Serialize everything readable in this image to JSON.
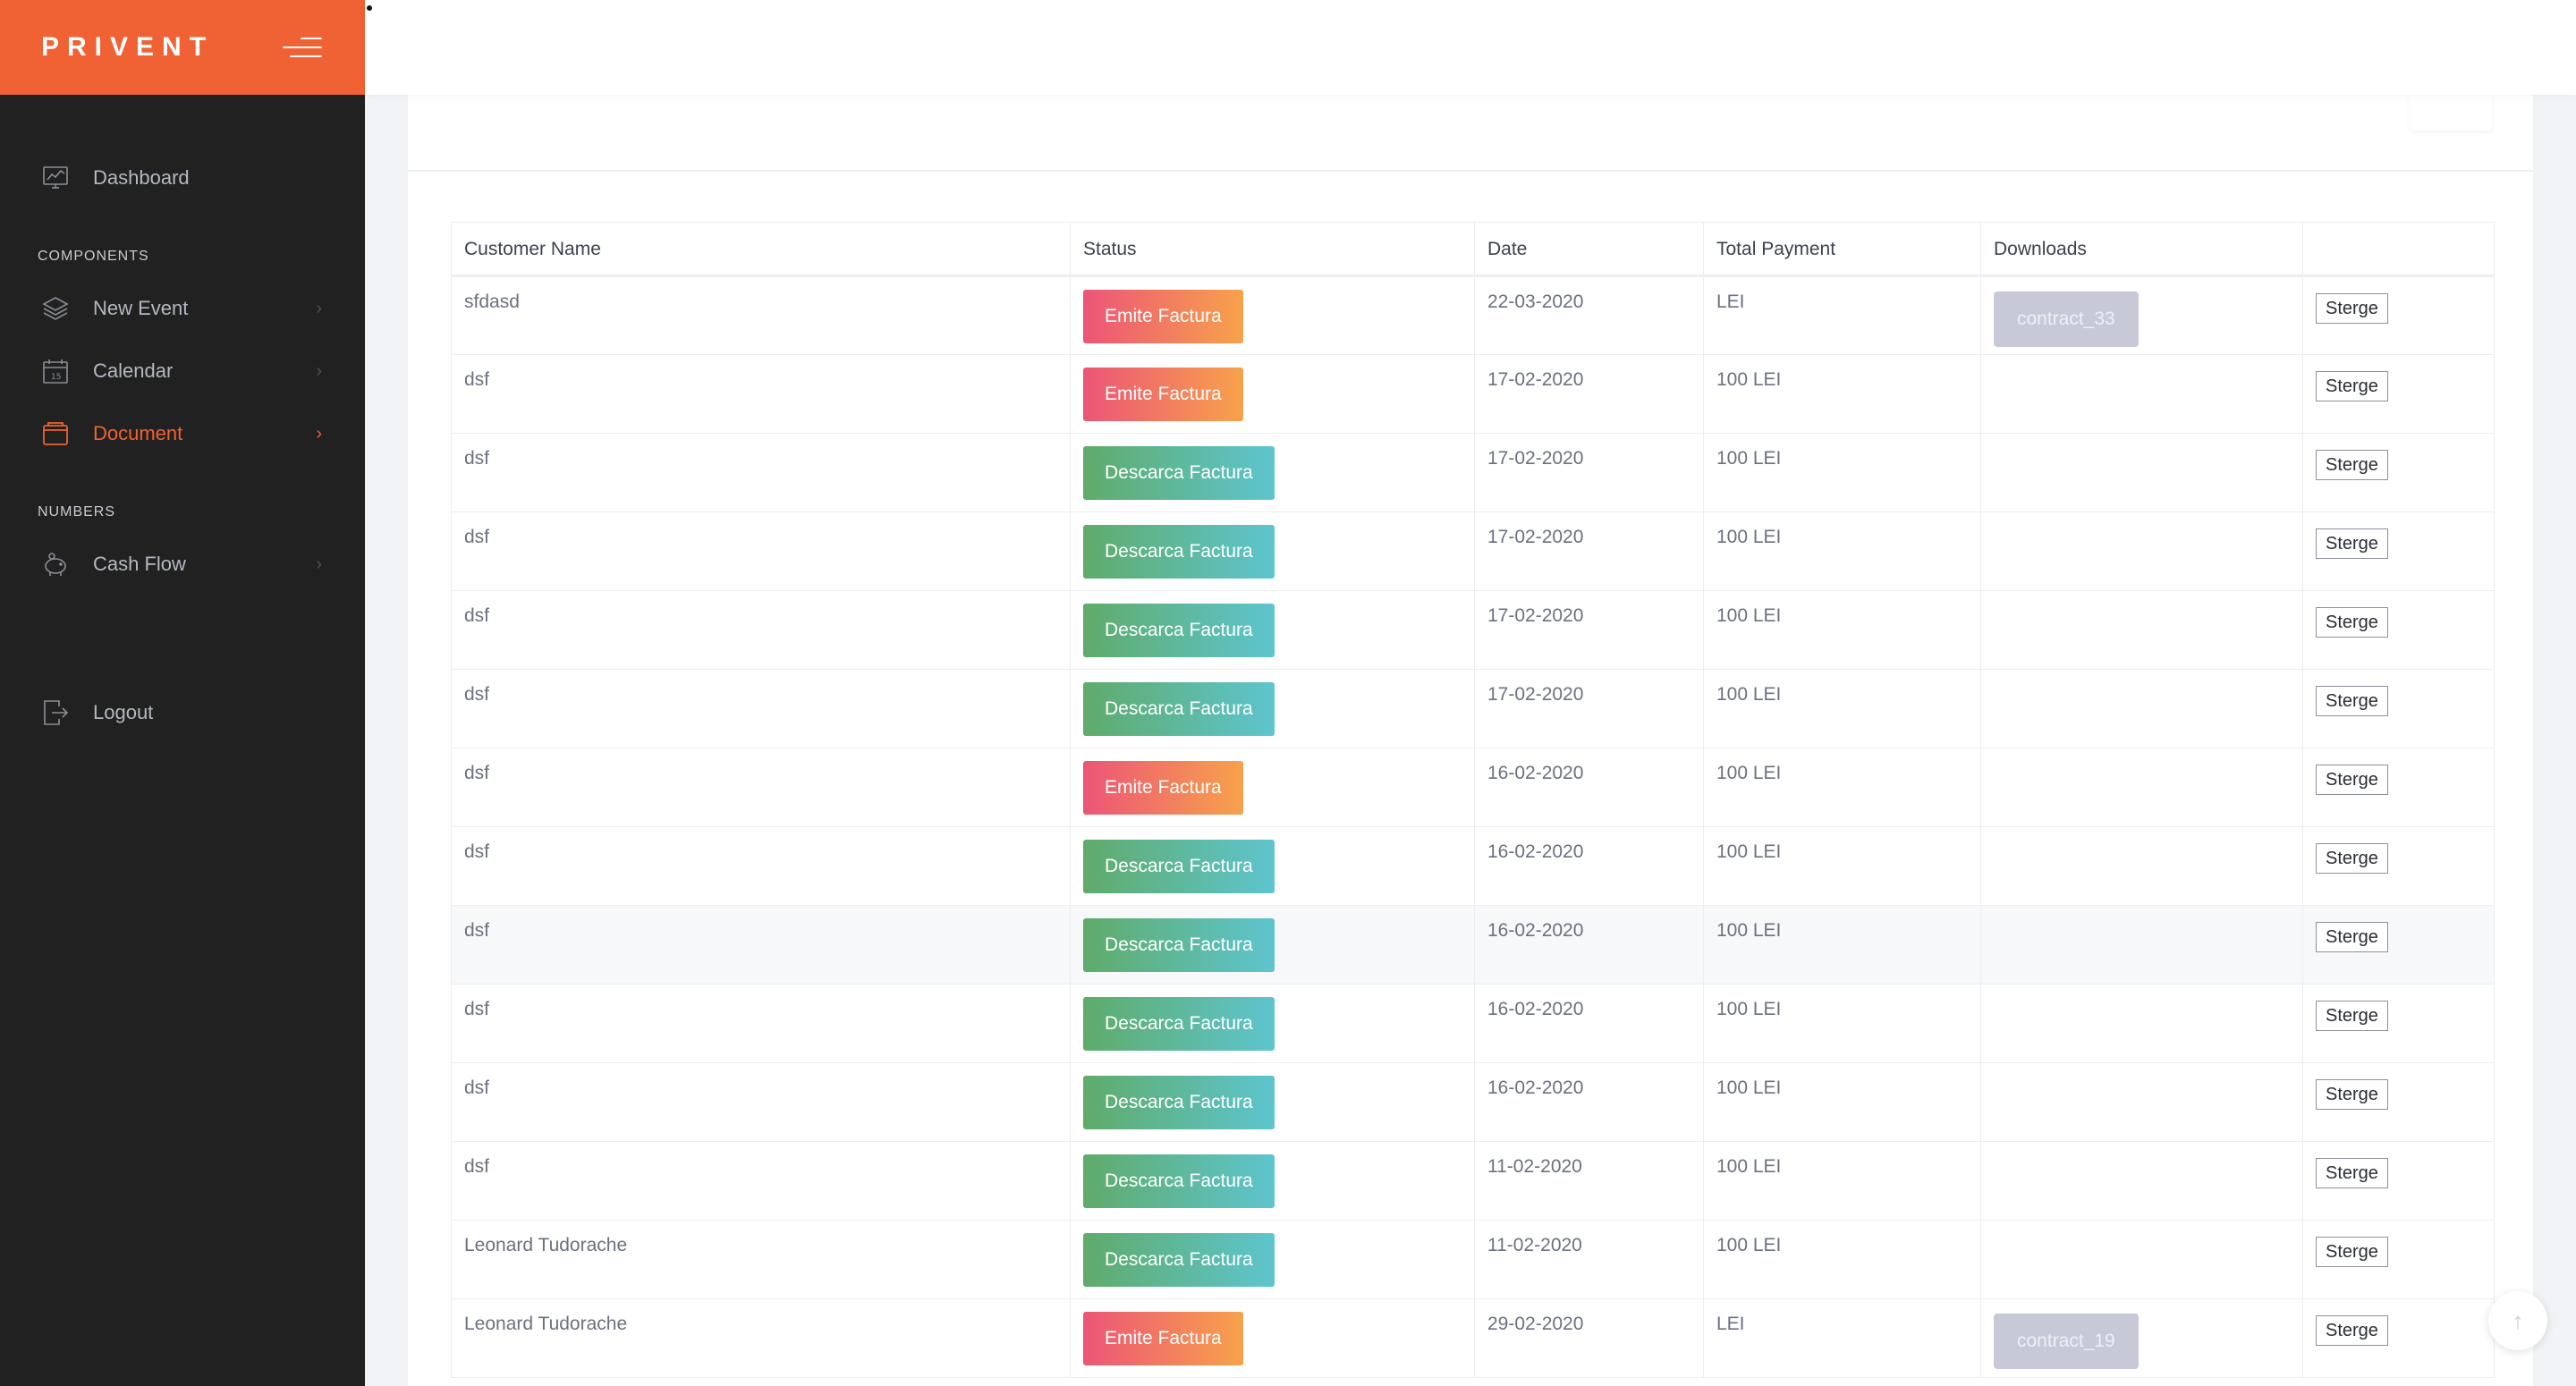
{
  "brand": {
    "name": "PRIVENT"
  },
  "sidebar": {
    "items_top": [
      {
        "label": "Dashboard",
        "icon": "chart-icon"
      }
    ],
    "section_components": "COMPONENTS",
    "items_components": [
      {
        "label": "New Event",
        "icon": "layers-icon",
        "chevron": "›"
      },
      {
        "label": "Calendar",
        "icon": "calendar-icon",
        "chevron": "›"
      },
      {
        "label": "Document",
        "icon": "folder-icon",
        "chevron": "›",
        "active": true
      }
    ],
    "section_numbers": "NUMBERS",
    "items_numbers": [
      {
        "label": "Cash Flow",
        "icon": "piggy-bank-icon",
        "chevron": "›"
      }
    ],
    "logout": {
      "label": "Logout",
      "icon": "logout-icon"
    }
  },
  "colors": {
    "accent": "#f06233",
    "sidebar_bg": "#212121",
    "emite_gradient": [
      "#ec5577",
      "#f7a24b"
    ],
    "descarca_gradient": [
      "#5fab6a",
      "#5ec5cf"
    ],
    "download_bg": "#c7c9d6"
  },
  "table": {
    "columns": [
      "Customer Name",
      "Status",
      "Date",
      "Total Payment",
      "Downloads",
      ""
    ],
    "rows": [
      {
        "customer": "sfdasd",
        "status": "Emite Factura",
        "status_type": "emite",
        "date": "22-03-2020",
        "total": "LEI",
        "download": "contract_33",
        "action": "Sterge"
      },
      {
        "customer": "dsf",
        "status": "Emite Factura",
        "status_type": "emite",
        "date": "17-02-2020",
        "total": "100 LEI",
        "download": "",
        "action": "Sterge"
      },
      {
        "customer": "dsf",
        "status": "Descarca Factura",
        "status_type": "descarca",
        "date": "17-02-2020",
        "total": "100 LEI",
        "download": "",
        "action": "Sterge"
      },
      {
        "customer": "dsf",
        "status": "Descarca Factura",
        "status_type": "descarca",
        "date": "17-02-2020",
        "total": "100 LEI",
        "download": "",
        "action": "Sterge"
      },
      {
        "customer": "dsf",
        "status": "Descarca Factura",
        "status_type": "descarca",
        "date": "17-02-2020",
        "total": "100 LEI",
        "download": "",
        "action": "Sterge"
      },
      {
        "customer": "dsf",
        "status": "Descarca Factura",
        "status_type": "descarca",
        "date": "17-02-2020",
        "total": "100 LEI",
        "download": "",
        "action": "Sterge"
      },
      {
        "customer": "dsf",
        "status": "Emite Factura",
        "status_type": "emite",
        "date": "16-02-2020",
        "total": "100 LEI",
        "download": "",
        "action": "Sterge"
      },
      {
        "customer": "dsf",
        "status": "Descarca Factura",
        "status_type": "descarca",
        "date": "16-02-2020",
        "total": "100 LEI",
        "download": "",
        "action": "Sterge"
      },
      {
        "customer": "dsf",
        "status": "Descarca Factura",
        "status_type": "descarca",
        "date": "16-02-2020",
        "total": "100 LEI",
        "download": "",
        "action": "Sterge",
        "hover": true
      },
      {
        "customer": "dsf",
        "status": "Descarca Factura",
        "status_type": "descarca",
        "date": "16-02-2020",
        "total": "100 LEI",
        "download": "",
        "action": "Sterge"
      },
      {
        "customer": "dsf",
        "status": "Descarca Factura",
        "status_type": "descarca",
        "date": "16-02-2020",
        "total": "100 LEI",
        "download": "",
        "action": "Sterge"
      },
      {
        "customer": "dsf",
        "status": "Descarca Factura",
        "status_type": "descarca",
        "date": "11-02-2020",
        "total": "100 LEI",
        "download": "",
        "action": "Sterge"
      },
      {
        "customer": "Leonard Tudorache",
        "status": "Descarca Factura",
        "status_type": "descarca",
        "date": "11-02-2020",
        "total": "100 LEI",
        "download": "",
        "action": "Sterge"
      },
      {
        "customer": "Leonard Tudorache",
        "status": "Emite Factura",
        "status_type": "emite",
        "date": "29-02-2020",
        "total": "LEI",
        "download": "contract_19",
        "action": "Sterge"
      }
    ]
  },
  "scroll_top": {
    "icon": "arrow-up-icon",
    "glyph": "↑"
  }
}
